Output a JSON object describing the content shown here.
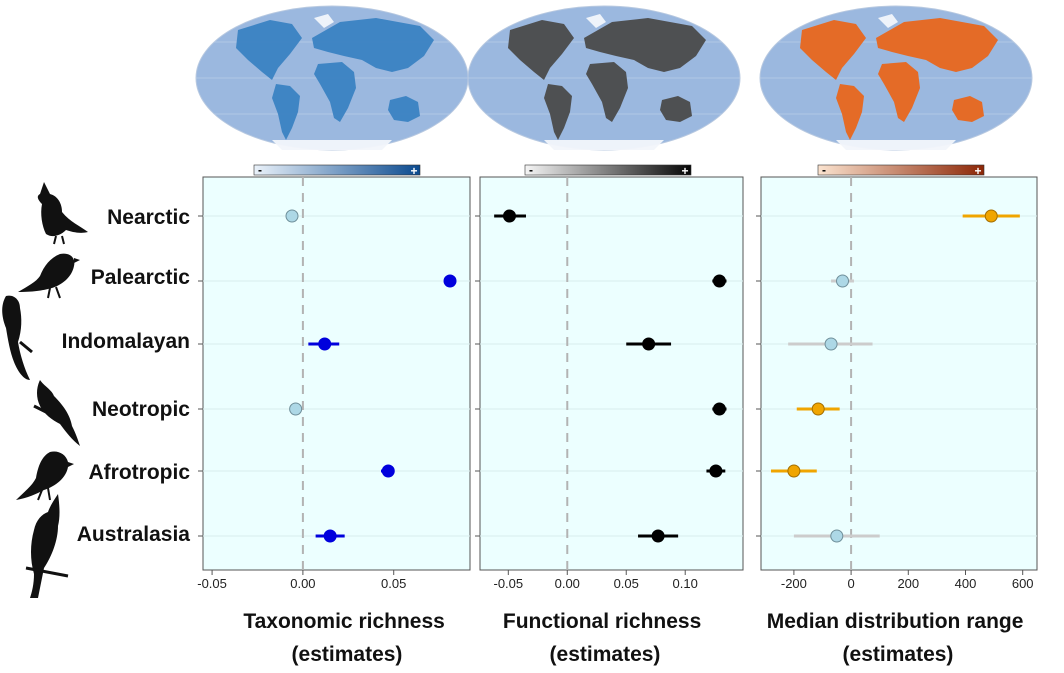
{
  "regions": [
    "Nearctic",
    "Palearctic",
    "Indomalayan",
    "Neotropic",
    "Afrotropic",
    "Australasia"
  ],
  "region_colors": [
    "#4e8a63",
    "#8ea6cc",
    "#e2a37f",
    "#ecea6c",
    "#9c4b4b",
    "#a7c0dc"
  ],
  "colorbar_signs": {
    "minus": "-",
    "plus": "+"
  },
  "colorbar_colors": {
    "taxonomic": [
      "#eaf2fa",
      "#0b4a8f"
    ],
    "functional": [
      "#f5f5f5",
      "#050505"
    ],
    "range": [
      "#fbe3cf",
      "#8c2606"
    ]
  },
  "map_colors": {
    "ocean": "#9bb8df",
    "taxonomic_land": "#3a82c2",
    "functional_land": "#4a4a4a",
    "range_land": "#e8661c",
    "ice": "#f2f6fb"
  },
  "marker_colors": {
    "non_significant": "#add8e6",
    "taxonomic_significant": "#0000dd",
    "functional": "#000000",
    "range_significant": "#f0a500",
    "non_significant_error_bar": "#cccccc"
  },
  "chart_data": [
    {
      "type": "scatter",
      "title": "",
      "xlabel": "Taxonomic richness (estimates)",
      "xlim": [
        -0.055,
        0.092
      ],
      "xticks": [
        -0.05,
        0.0,
        0.05
      ],
      "xtick_labels": [
        "-0.05",
        "0.00",
        "0.05"
      ],
      "grid": true,
      "reference_line": 0,
      "series": [
        {
          "categories": [
            "Nearctic",
            "Palearctic",
            "Indomalayan",
            "Neotropic",
            "Afrotropic",
            "Australasia"
          ],
          "estimates": [
            -0.006,
            0.081,
            0.012,
            -0.004,
            0.047,
            0.015
          ],
          "ci_low": [
            -0.007,
            0.08,
            0.003,
            -0.005,
            0.043,
            0.007
          ],
          "ci_high": [
            -0.005,
            0.082,
            0.02,
            -0.003,
            0.05,
            0.023
          ],
          "significant": [
            false,
            true,
            true,
            false,
            true,
            true
          ]
        }
      ]
    },
    {
      "type": "scatter",
      "title": "",
      "xlabel": "Functional richness (estimates)",
      "xlim": [
        -0.074,
        0.149
      ],
      "xticks": [
        -0.05,
        0.0,
        0.05,
        0.1
      ],
      "xtick_labels": [
        "-0.05",
        "0.00",
        "0.05",
        "0.10"
      ],
      "grid": true,
      "reference_line": 0,
      "series": [
        {
          "categories": [
            "Nearctic",
            "Palearctic",
            "Indomalayan",
            "Neotropic",
            "Afrotropic",
            "Australasia"
          ],
          "estimates": [
            -0.049,
            0.129,
            0.069,
            0.129,
            0.126,
            0.077
          ],
          "ci_low": [
            -0.062,
            0.123,
            0.05,
            0.123,
            0.118,
            0.06
          ],
          "ci_high": [
            -0.035,
            0.135,
            0.088,
            0.135,
            0.134,
            0.094
          ],
          "significant": [
            true,
            true,
            true,
            true,
            true,
            true
          ]
        }
      ]
    },
    {
      "type": "scatter",
      "title": "",
      "xlabel": "Median distribution range (estimates)",
      "xlim": [
        -315,
        650
      ],
      "xticks": [
        -200,
        0,
        200,
        400,
        600
      ],
      "xtick_labels": [
        "-200",
        "0",
        "200",
        "400",
        "600"
      ],
      "grid": true,
      "reference_line": 0,
      "series": [
        {
          "categories": [
            "Nearctic",
            "Palearctic",
            "Indomalayan",
            "Neotropic",
            "Afrotropic",
            "Australasia"
          ],
          "estimates": [
            490,
            -30,
            -70,
            -115,
            -200,
            -50
          ],
          "ci_low": [
            390,
            -70,
            -220,
            -190,
            -280,
            -200
          ],
          "ci_high": [
            590,
            10,
            75,
            -40,
            -120,
            100
          ],
          "significant": [
            true,
            false,
            false,
            true,
            true,
            false
          ]
        }
      ]
    }
  ]
}
